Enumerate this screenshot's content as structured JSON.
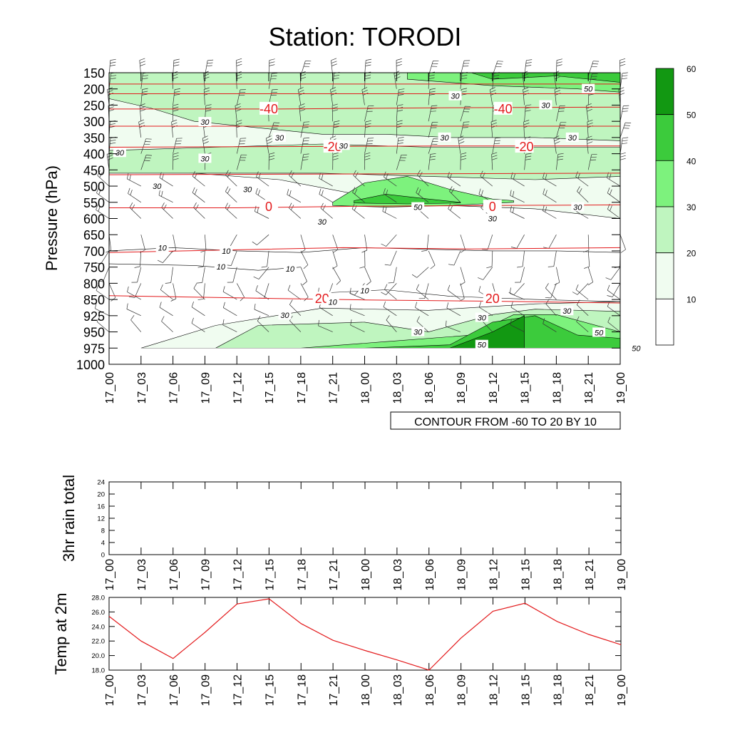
{
  "title": "Station: TORODI",
  "time_labels": [
    "17_00",
    "17_03",
    "17_06",
    "17_09",
    "17_12",
    "17_15",
    "17_18",
    "17_21",
    "18_00",
    "18_03",
    "18_06",
    "18_09",
    "18_12",
    "18_15",
    "18_18",
    "18_21",
    "19_00"
  ],
  "colors": {
    "shade_levels": [
      "#ffffff",
      "#f0fcf0",
      "#bff5bf",
      "#7df27d",
      "#3ccb3c",
      "#129812"
    ],
    "contour": "#000000",
    "temp_contour": "#e31a1c",
    "temp_line": "#e31a1c",
    "barb": "#333333"
  },
  "chart_data": [
    {
      "type": "heatmap",
      "name": "wind-speed-cross-section",
      "ylabel": "Pressure (hPa)",
      "pressure_levels": [
        150,
        200,
        250,
        300,
        350,
        400,
        450,
        500,
        550,
        600,
        650,
        700,
        750,
        800,
        850,
        925,
        950,
        975,
        1000
      ],
      "ylim": [
        1000,
        150
      ],
      "wind_speed_regions": [
        {
          "level": 30,
          "t": [
            0,
            24,
            48
          ],
          "p_top": [
            270,
            250,
            300
          ],
          "p_bottom": [
            420,
            450,
            420
          ]
        },
        {
          "level": 50,
          "t": [
            24,
            33
          ],
          "p_top": [
            540,
            520
          ],
          "p_bottom": [
            560,
            560
          ]
        },
        {
          "level": 50,
          "t": [
            36,
            42,
            48
          ],
          "p_top": [
            975,
            930,
            960
          ],
          "p_bottom": [
            975,
            975,
            975
          ]
        },
        {
          "level": 50,
          "t": [
            30,
            40,
            48
          ],
          "p_top": [
            170,
            150,
            160
          ],
          "p_bottom": [
            200,
            200,
            210
          ]
        }
      ],
      "contour_labels": [
        {
          "text": "30",
          "t": 32.5,
          "p": 222
        },
        {
          "text": "30",
          "t": 41.0,
          "p": 250
        },
        {
          "text": "50",
          "t": 45.0,
          "p": 200
        },
        {
          "text": "30",
          "t": 9.0,
          "p": 302
        },
        {
          "text": "30",
          "t": 16.0,
          "p": 350
        },
        {
          "text": "30",
          "t": 22.0,
          "p": 375
        },
        {
          "text": "30",
          "t": 31.5,
          "p": 350
        },
        {
          "text": "30",
          "t": 43.5,
          "p": 350
        },
        {
          "text": "30",
          "t": 1.0,
          "p": 397
        },
        {
          "text": "30",
          "t": 9.0,
          "p": 415
        },
        {
          "text": "30",
          "t": 4.5,
          "p": 500
        },
        {
          "text": "30",
          "t": 13.0,
          "p": 510
        },
        {
          "text": "50",
          "t": 29.0,
          "p": 565
        },
        {
          "text": "30",
          "t": 20.0,
          "p": 610
        },
        {
          "text": "30",
          "t": 36.0,
          "p": 600
        },
        {
          "text": "30",
          "t": 44.0,
          "p": 565
        },
        {
          "text": "10",
          "t": 5.0,
          "p": 690
        },
        {
          "text": "10",
          "t": 11.0,
          "p": 700
        },
        {
          "text": "10",
          "t": 10.5,
          "p": 748
        },
        {
          "text": "10",
          "t": 17.0,
          "p": 755
        },
        {
          "text": "10",
          "t": 24.0,
          "p": 822
        },
        {
          "text": "10",
          "t": 21.0,
          "p": 861
        },
        {
          "text": "30",
          "t": 16.5,
          "p": 923
        },
        {
          "text": "30",
          "t": 35.0,
          "p": 928
        },
        {
          "text": "30",
          "t": 43.0,
          "p": 903
        },
        {
          "text": "30",
          "t": 29.0,
          "p": 950
        },
        {
          "text": "50",
          "t": 35.0,
          "p": 970
        },
        {
          "text": "50",
          "t": 46.0,
          "p": 951
        },
        {
          "text": "50",
          "t": 49.5,
          "p": 975
        }
      ],
      "temperature_contours": [
        {
          "value": "-40",
          "labels_t": [
            15,
            37
          ]
        },
        {
          "value": "-20",
          "labels_t": [
            21,
            39
          ]
        },
        {
          "value": "0",
          "labels_t": [
            15,
            36
          ]
        },
        {
          "value": "20",
          "labels_t": [
            20,
            36
          ]
        }
      ],
      "colorbar": {
        "tick_labels": [
          "10",
          "20",
          "30",
          "40",
          "50",
          "60"
        ]
      },
      "info_box": "CONTOUR FROM -60 TO 20 BY 10"
    },
    {
      "type": "line",
      "name": "rain",
      "ylabel": "3hr rain total",
      "yticks": [
        "0",
        "4",
        "8",
        "12",
        "16",
        "20",
        "24"
      ],
      "ylim": [
        0,
        24
      ],
      "values": [
        0,
        0,
        0,
        0,
        0,
        0,
        0,
        0,
        0,
        0,
        0,
        0,
        0,
        0,
        0,
        0,
        0
      ]
    },
    {
      "type": "line",
      "name": "temp",
      "ylabel": "Temp at 2m",
      "yticks": [
        "18.0",
        "20.0",
        "22.0",
        "24.0",
        "26.0",
        "28.0"
      ],
      "ylim": [
        18,
        28
      ],
      "values": [
        25.4,
        22.0,
        19.6,
        23.2,
        27.1,
        27.8,
        24.4,
        22.1,
        20.7,
        19.4,
        18.0,
        22.4,
        26.1,
        27.2,
        24.7,
        22.9,
        21.5
      ]
    }
  ]
}
